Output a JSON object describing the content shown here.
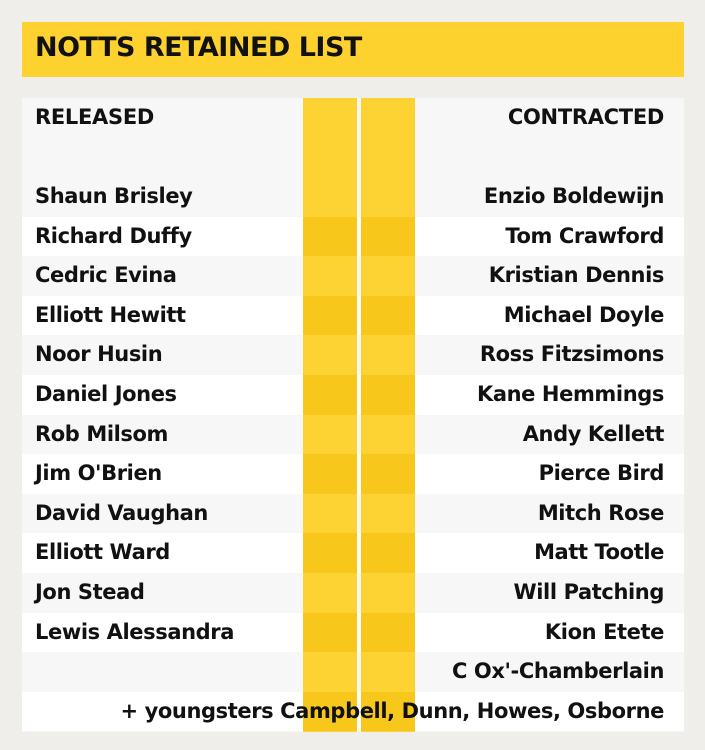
{
  "title": "NOTTS RETAINED LIST",
  "columns": {
    "left": "RELEASED",
    "right": "CONTRACTED"
  },
  "colors": {
    "background": "#efeeea",
    "accent": "#fdd22f",
    "accent_dark": "#f8c71b"
  },
  "rows": [
    {
      "released": "Shaun Brisley",
      "contracted": "Enzio Boldewijn"
    },
    {
      "released": "Richard Duffy",
      "contracted": "Tom Crawford"
    },
    {
      "released": "Cedric Evina",
      "contracted": "Kristian Dennis"
    },
    {
      "released": "Elliott Hewitt",
      "contracted": "Michael Doyle"
    },
    {
      "released": "Noor Husin",
      "contracted": "Ross Fitzsimons"
    },
    {
      "released": "Daniel Jones",
      "contracted": "Kane Hemmings"
    },
    {
      "released": "Rob Milsom",
      "contracted": "Andy Kellett"
    },
    {
      "released": "Jim O'Brien",
      "contracted": "Pierce Bird"
    },
    {
      "released": "David Vaughan",
      "contracted": "Mitch Rose"
    },
    {
      "released": "Elliott Ward",
      "contracted": "Matt Tootle"
    },
    {
      "released": "Jon Stead",
      "contracted": "Will Patching"
    },
    {
      "released": "Lewis Alessandra",
      "contracted": "Kion Etete"
    },
    {
      "released": "",
      "contracted": "C Ox'-Chamberlain"
    }
  ],
  "footer": "+ youngsters Campbell, Dunn, Howes, Osborne"
}
